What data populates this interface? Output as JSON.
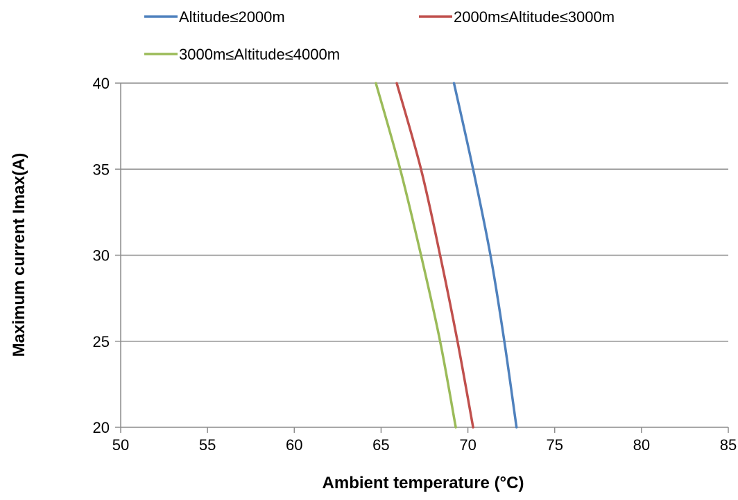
{
  "chart_data": {
    "type": "line",
    "title": "",
    "xlabel": "Ambient temperature (°C)",
    "ylabel": "Maximum current Imax(A)",
    "xlim": [
      50,
      85
    ],
    "ylim": [
      20,
      40
    ],
    "x_ticks": [
      50,
      55,
      60,
      65,
      70,
      75,
      80,
      85
    ],
    "y_ticks": [
      20,
      25,
      30,
      35,
      40
    ],
    "x_tick_labels": [
      "50",
      "55",
      "60",
      "65",
      "70",
      "75",
      "80",
      "85"
    ],
    "y_tick_labels": [
      "20",
      "25",
      "30",
      "35",
      "40"
    ],
    "grid": "horizontal",
    "legend_position": "top",
    "series": [
      {
        "name": "Altitude≤2000m",
        "color": "#4f81bd",
        "points": [
          [
            69.2,
            40
          ],
          [
            70.3,
            35
          ],
          [
            71.3,
            30
          ],
          [
            72.1,
            25
          ],
          [
            72.8,
            20
          ]
        ]
      },
      {
        "name": "2000m≤Altitude≤3000m",
        "color": "#c0504d",
        "points": [
          [
            65.9,
            40
          ],
          [
            67.3,
            35
          ],
          [
            68.4,
            30
          ],
          [
            69.4,
            25
          ],
          [
            70.3,
            20
          ]
        ]
      },
      {
        "name": "3000m≤Altitude≤4000m",
        "color": "#9bbb59",
        "points": [
          [
            64.7,
            40
          ],
          [
            66.1,
            35
          ],
          [
            67.3,
            30
          ],
          [
            68.4,
            25
          ],
          [
            69.3,
            20
          ]
        ]
      }
    ]
  }
}
